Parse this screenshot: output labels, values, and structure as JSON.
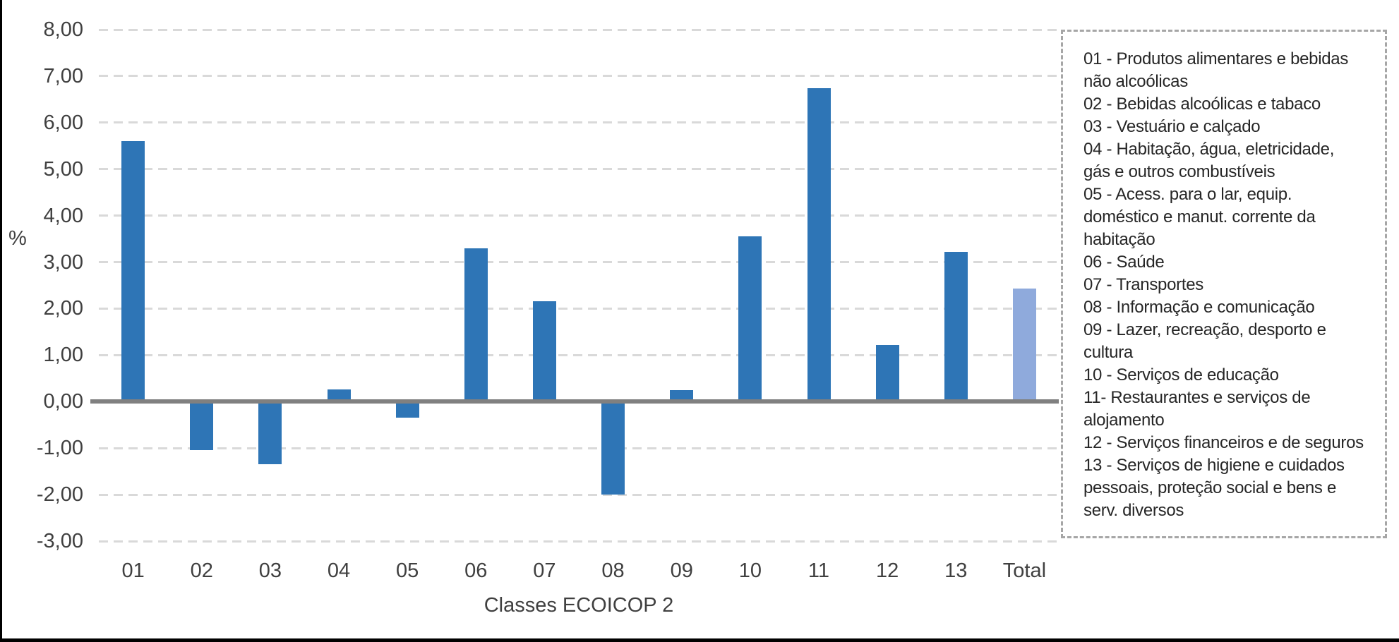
{
  "chart_data": {
    "type": "bar",
    "title": "",
    "y_axis_title": "%",
    "x_axis_title": "Classes ECOICOP 2",
    "categories": [
      "01",
      "02",
      "03",
      "04",
      "05",
      "06",
      "07",
      "08",
      "09",
      "10",
      "11",
      "12",
      "13",
      "Total"
    ],
    "values": [
      5.6,
      -1.05,
      -1.35,
      0.26,
      -0.34,
      3.3,
      2.16,
      -2.0,
      0.24,
      3.55,
      6.74,
      1.22,
      3.22,
      2.43
    ],
    "ylim": [
      -3,
      8
    ],
    "y_tick_step": 1,
    "y_tick_labels": [
      "8,00",
      "7,00",
      "6,00",
      "5,00",
      "4,00",
      "3,00",
      "2,00",
      "1,00",
      "0,00",
      "-1,00",
      "-2,00",
      "-3,00"
    ],
    "grid": "horizontal-dashed",
    "legend_position": "right",
    "colors": {
      "bar": "#2E75B6",
      "total_bar": "#8FAADC",
      "zero_line": "#808080",
      "gridline": "#D9D9D9",
      "legend_border": "#A6A6A6",
      "axis_text": "#404040",
      "legend_text": "#262626",
      "frame": "#000000"
    }
  },
  "legend": {
    "items": [
      "01 - Produtos alimentares e bebidas\nnão alcoólicas",
      "02 - Bebidas alcoólicas e tabaco",
      "03 - Vestuário e calçado",
      "04 - Habitação, água, eletricidade,\ngás e outros combustíveis",
      "05 - Acess. para o lar, equip.\ndoméstico e manut. corrente da\nhabitação",
      "06 - Saúde",
      "07 - Transportes",
      "08 - Informação e comunicação",
      "09 - Lazer, recreação, desporto e\ncultura",
      "10 - Serviços de educação",
      "11- Restaurantes e serviços de\nalojamento",
      "12 - Serviços financeiros e de seguros",
      "13 - Serviços de higiene e cuidados\npessoais, proteção social e bens e\nserv. diversos"
    ]
  }
}
